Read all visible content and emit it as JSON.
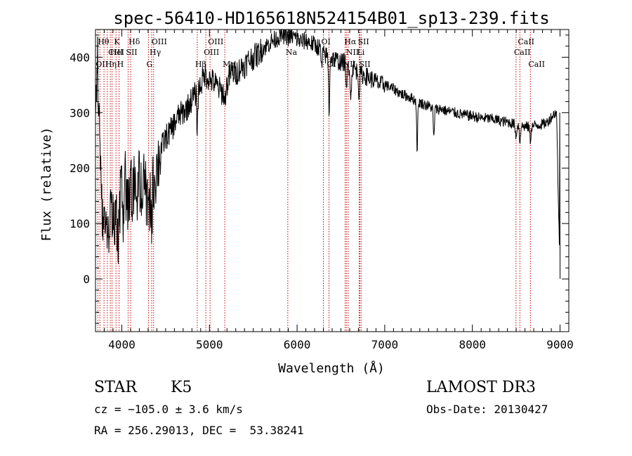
{
  "chart_data": {
    "type": "line",
    "title": "spec-56410-HD165618N524154B01_sp13-239.fits",
    "xlabel": "Wavelength (Å)",
    "ylabel": "Flux (relative)",
    "xlim": [
      3700,
      9100
    ],
    "ylim": [
      -95,
      450
    ],
    "xticks": [
      4000,
      5000,
      6000,
      7000,
      8000,
      9000
    ],
    "yticks": [
      0,
      100,
      200,
      300,
      400
    ],
    "line_color": "#000000",
    "marker_color": "#cc0000",
    "anchors": [
      [
        3700,
        310
      ],
      [
        3720,
        390
      ],
      [
        3740,
        330
      ],
      [
        3760,
        200
      ],
      [
        3780,
        120
      ],
      [
        3800,
        90
      ],
      [
        3820,
        130
      ],
      [
        3840,
        80
      ],
      [
        3860,
        110
      ],
      [
        3880,
        150
      ],
      [
        3900,
        95
      ],
      [
        3920,
        120
      ],
      [
        3940,
        100
      ],
      [
        3960,
        60
      ],
      [
        3980,
        140
      ],
      [
        4000,
        150
      ],
      [
        4020,
        120
      ],
      [
        4040,
        175
      ],
      [
        4060,
        150
      ],
      [
        4080,
        120
      ],
      [
        4100,
        170
      ],
      [
        4120,
        145
      ],
      [
        4150,
        175
      ],
      [
        4180,
        160
      ],
      [
        4200,
        180
      ],
      [
        4230,
        160
      ],
      [
        4260,
        170
      ],
      [
        4280,
        150
      ],
      [
        4300,
        145
      ],
      [
        4330,
        150
      ],
      [
        4360,
        170
      ],
      [
        4400,
        200
      ],
      [
        4450,
        235
      ],
      [
        4500,
        255
      ],
      [
        4550,
        265
      ],
      [
        4600,
        280
      ],
      [
        4650,
        295
      ],
      [
        4700,
        300
      ],
      [
        4750,
        310
      ],
      [
        4800,
        325
      ],
      [
        4850,
        335
      ],
      [
        4900,
        350
      ],
      [
        4950,
        370
      ],
      [
        5000,
        360
      ],
      [
        5050,
        355
      ],
      [
        5100,
        345
      ],
      [
        5150,
        335
      ],
      [
        5200,
        350
      ],
      [
        5250,
        375
      ],
      [
        5300,
        370
      ],
      [
        5350,
        380
      ],
      [
        5400,
        385
      ],
      [
        5450,
        395
      ],
      [
        5500,
        400
      ],
      [
        5550,
        405
      ],
      [
        5600,
        415
      ],
      [
        5650,
        420
      ],
      [
        5700,
        428
      ],
      [
        5750,
        432
      ],
      [
        5800,
        438
      ],
      [
        5850,
        440
      ],
      [
        5900,
        436
      ],
      [
        5950,
        438
      ],
      [
        6000,
        432
      ],
      [
        6050,
        428
      ],
      [
        6100,
        430
      ],
      [
        6150,
        426
      ],
      [
        6200,
        422
      ],
      [
        6250,
        418
      ],
      [
        6300,
        405
      ],
      [
        6350,
        402
      ],
      [
        6400,
        398
      ],
      [
        6450,
        395
      ],
      [
        6500,
        390
      ],
      [
        6550,
        392
      ],
      [
        6600,
        382
      ],
      [
        6650,
        380
      ],
      [
        6700,
        372
      ],
      [
        6750,
        368
      ],
      [
        6800,
        365
      ],
      [
        6850,
        360
      ],
      [
        6900,
        356
      ],
      [
        6950,
        350
      ],
      [
        7000,
        352
      ],
      [
        7050,
        346
      ],
      [
        7100,
        343
      ],
      [
        7150,
        338
      ],
      [
        7200,
        333
      ],
      [
        7250,
        330
      ],
      [
        7300,
        327
      ],
      [
        7350,
        322
      ],
      [
        7400,
        318
      ],
      [
        7450,
        315
      ],
      [
        7500,
        312
      ],
      [
        7550,
        308
      ],
      [
        7600,
        306
      ],
      [
        7650,
        307
      ],
      [
        7700,
        303
      ],
      [
        7750,
        302
      ],
      [
        7800,
        300
      ],
      [
        7850,
        298
      ],
      [
        7900,
        296
      ],
      [
        7950,
        295
      ],
      [
        8000,
        294
      ],
      [
        8050,
        292
      ],
      [
        8100,
        290
      ],
      [
        8150,
        290
      ],
      [
        8200,
        289
      ],
      [
        8250,
        288
      ],
      [
        8300,
        286
      ],
      [
        8350,
        284
      ],
      [
        8400,
        283
      ],
      [
        8450,
        281
      ],
      [
        8500,
        278
      ],
      [
        8550,
        276
      ],
      [
        8600,
        275
      ],
      [
        8650,
        274
      ],
      [
        8700,
        276
      ],
      [
        8750,
        278
      ],
      [
        8800,
        279
      ],
      [
        8850,
        282
      ],
      [
        8900,
        292
      ],
      [
        8960,
        302
      ],
      [
        9000,
        0
      ]
    ],
    "dips": [
      [
        4861,
        -65
      ],
      [
        5175,
        -30
      ],
      [
        6280,
        -30
      ],
      [
        6365,
        -100
      ],
      [
        6563,
        -60
      ],
      [
        6613,
        -60
      ],
      [
        6708,
        -40
      ],
      [
        7370,
        -85
      ],
      [
        7560,
        -55
      ],
      [
        8498,
        -25
      ],
      [
        8542,
        -30
      ],
      [
        8662,
        -25
      ],
      [
        4308,
        -50
      ],
      [
        4340,
        -55
      ]
    ],
    "noise": [
      {
        "upto": 4450,
        "amp": 60
      },
      {
        "upto": 5600,
        "amp": 24
      },
      {
        "upto": 7000,
        "amp": 17
      },
      {
        "upto": 9100,
        "amp": 10
      }
    ],
    "lines": [
      {
        "x": 3727,
        "label": "OII",
        "row": 3
      },
      {
        "x": 3750,
        "label": "Hθ",
        "row": 1
      },
      {
        "x": 3797,
        "label": "",
        "row": 0
      },
      {
        "x": 3835,
        "label": "Hη",
        "row": 3
      },
      {
        "x": 3869,
        "label": "CIII",
        "row": 2
      },
      {
        "x": 3889,
        "label": "HeI",
        "row": 2
      },
      {
        "x": 3934,
        "label": "K",
        "row": 1
      },
      {
        "x": 3969,
        "label": "H",
        "row": 3
      },
      {
        "x": 4072,
        "label": "SII",
        "row": 2
      },
      {
        "x": 4102,
        "label": "Hδ",
        "row": 1
      },
      {
        "x": 4304,
        "label": "G",
        "row": 3
      },
      {
        "x": 4341,
        "label": "Hγ",
        "row": 2
      },
      {
        "x": 4363,
        "label": "OIII",
        "row": 1
      },
      {
        "x": 4861,
        "label": "Hβ",
        "row": 3
      },
      {
        "x": 4959,
        "label": "OIII",
        "row": 2
      },
      {
        "x": 5007,
        "label": "OIII",
        "row": 1
      },
      {
        "x": 5175,
        "label": "Mg",
        "row": 3
      },
      {
        "x": 5894,
        "label": "Na",
        "row": 2
      },
      {
        "x": 6300,
        "label": "OI",
        "row": 1
      },
      {
        "x": 6364,
        "label": "OI",
        "row": 3
      },
      {
        "x": 6548,
        "label": "NII",
        "row": 3
      },
      {
        "x": 6563,
        "label": "Hα",
        "row": 1
      },
      {
        "x": 6583,
        "label": "NII",
        "row": 2
      },
      {
        "x": 6716,
        "label": "SII",
        "row": 1
      },
      {
        "x": 6731,
        "label": "SII",
        "row": 3
      },
      {
        "x": 6708,
        "label": "Li",
        "row": 2
      },
      {
        "x": 8498,
        "label": "CaII",
        "row": 2
      },
      {
        "x": 8542,
        "label": "CaII",
        "row": 1
      },
      {
        "x": 8662,
        "label": "CaII",
        "row": 3
      }
    ]
  },
  "info": {
    "object_type": "STAR",
    "subclass": "K5",
    "survey": "LAMOST DR3",
    "redshift": "cz = −105.0 ± 3.6 km/s",
    "obs_date": "Obs-Date: 20130427",
    "coords": "RA = 256.29013, DEC =  53.38241"
  }
}
